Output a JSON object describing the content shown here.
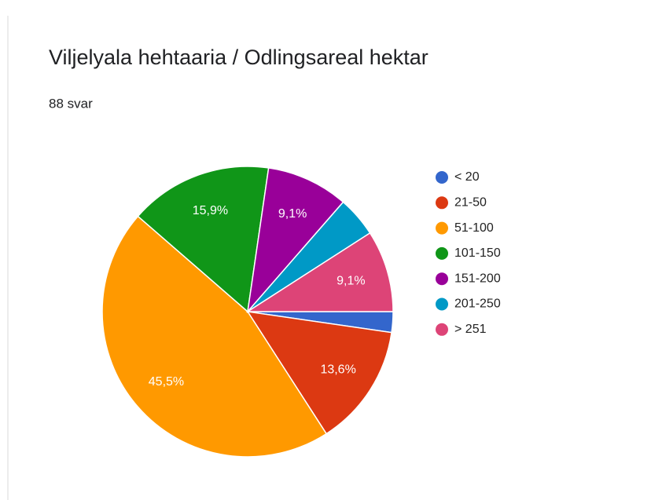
{
  "chart_data": {
    "type": "pie",
    "title": "Viljelyala hehtaaria / Odlingsareal hektar",
    "subtitle": "88 svar",
    "categories": [
      "< 20",
      "21-50",
      "51-100",
      "101-150",
      "151-200",
      "201-250",
      "> 251"
    ],
    "values": [
      2.3,
      13.6,
      45.5,
      15.9,
      9.1,
      4.5,
      9.1
    ],
    "value_labels": [
      null,
      "13,6%",
      "45,5%",
      "15,9%",
      "9,1%",
      null,
      "9,1%"
    ],
    "colors": [
      "#3366cc",
      "#dc3912",
      "#ff9900",
      "#109618",
      "#990099",
      "#0099c6",
      "#dd4477"
    ],
    "legend": "right"
  }
}
